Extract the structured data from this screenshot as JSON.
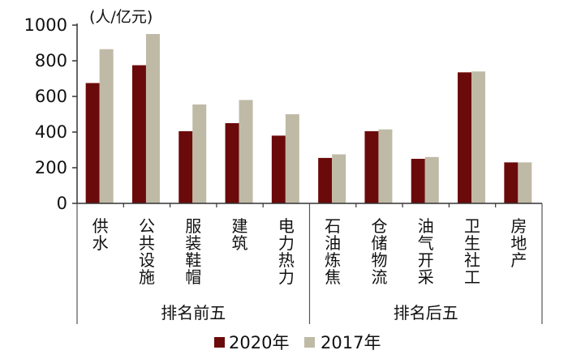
{
  "chart_data": {
    "type": "bar",
    "unit_label": "(人/亿元)",
    "ylim": [
      0,
      1000
    ],
    "yticks": [
      0,
      200,
      400,
      600,
      800,
      1000
    ],
    "categories": [
      "供水",
      "公共设施",
      "服装鞋帽",
      "建筑",
      "电力热力",
      "石油炼焦",
      "仓储物流",
      "油气开采",
      "卫生社工",
      "房地产"
    ],
    "groups": [
      {
        "label": "排名前五",
        "count": 5
      },
      {
        "label": "排名后五",
        "count": 5
      }
    ],
    "series": [
      {
        "name": "2020年",
        "color": "#6b0a0a",
        "values": [
          675,
          775,
          405,
          450,
          380,
          255,
          405,
          250,
          735,
          230
        ]
      },
      {
        "name": "2017年",
        "color": "#bfbaa6",
        "values": [
          865,
          950,
          555,
          580,
          500,
          275,
          415,
          260,
          740,
          230
        ]
      }
    ],
    "legend_position": "bottom",
    "grid": false
  }
}
